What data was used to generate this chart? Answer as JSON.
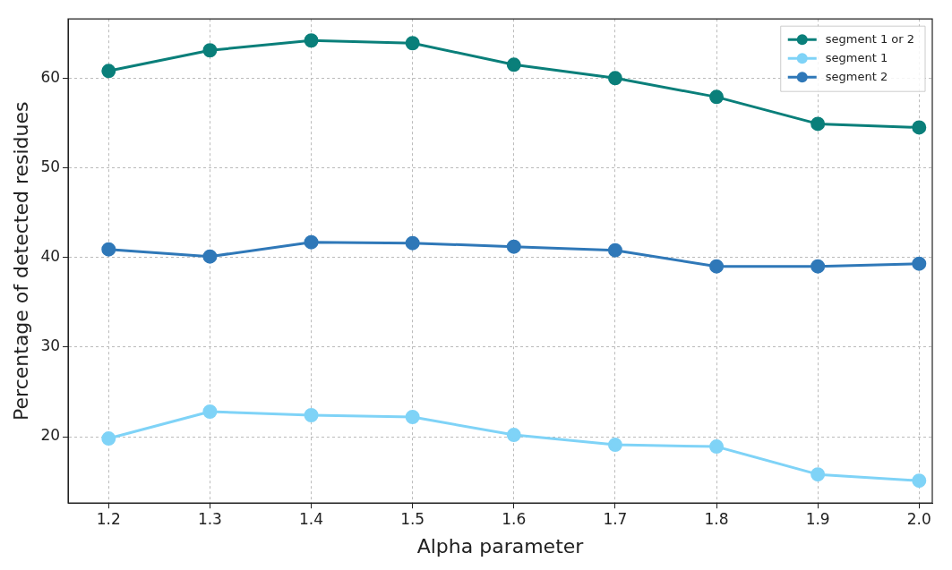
{
  "chart_data": {
    "type": "line",
    "xlabel": "Alpha parameter",
    "ylabel": "Percentage of detected residues",
    "x": [
      1.2,
      1.3,
      1.4,
      1.5,
      1.6,
      1.7,
      1.8,
      1.9,
      2.0
    ],
    "series": [
      {
        "name": "segment 1 or 2",
        "color": "#0a7f7a",
        "values": [
          60.8,
          63.1,
          64.2,
          63.9,
          61.5,
          60.0,
          57.9,
          54.9,
          54.5
        ]
      },
      {
        "name": "segment 1",
        "color": "#7fd3f7",
        "values": [
          19.8,
          22.8,
          22.4,
          22.2,
          20.2,
          19.1,
          18.9,
          15.8,
          15.1
        ]
      },
      {
        "name": "segment 2",
        "color": "#2f78b8",
        "values": [
          40.9,
          40.1,
          41.7,
          41.6,
          41.2,
          40.8,
          39.0,
          39.0,
          39.3
        ]
      }
    ],
    "xlim": [
      1.16,
      2.013
    ],
    "ylim": [
      12.6,
      66.6
    ],
    "xticks": [
      1.2,
      1.3,
      1.4,
      1.5,
      1.6,
      1.7,
      1.8,
      1.9,
      {
        "value": 2,
        "label": "2.0"
      }
    ],
    "yticks": [
      20,
      30,
      40,
      50,
      60
    ],
    "grid": true,
    "legend": "top right",
    "marker": "circle",
    "line_style": "solid"
  }
}
